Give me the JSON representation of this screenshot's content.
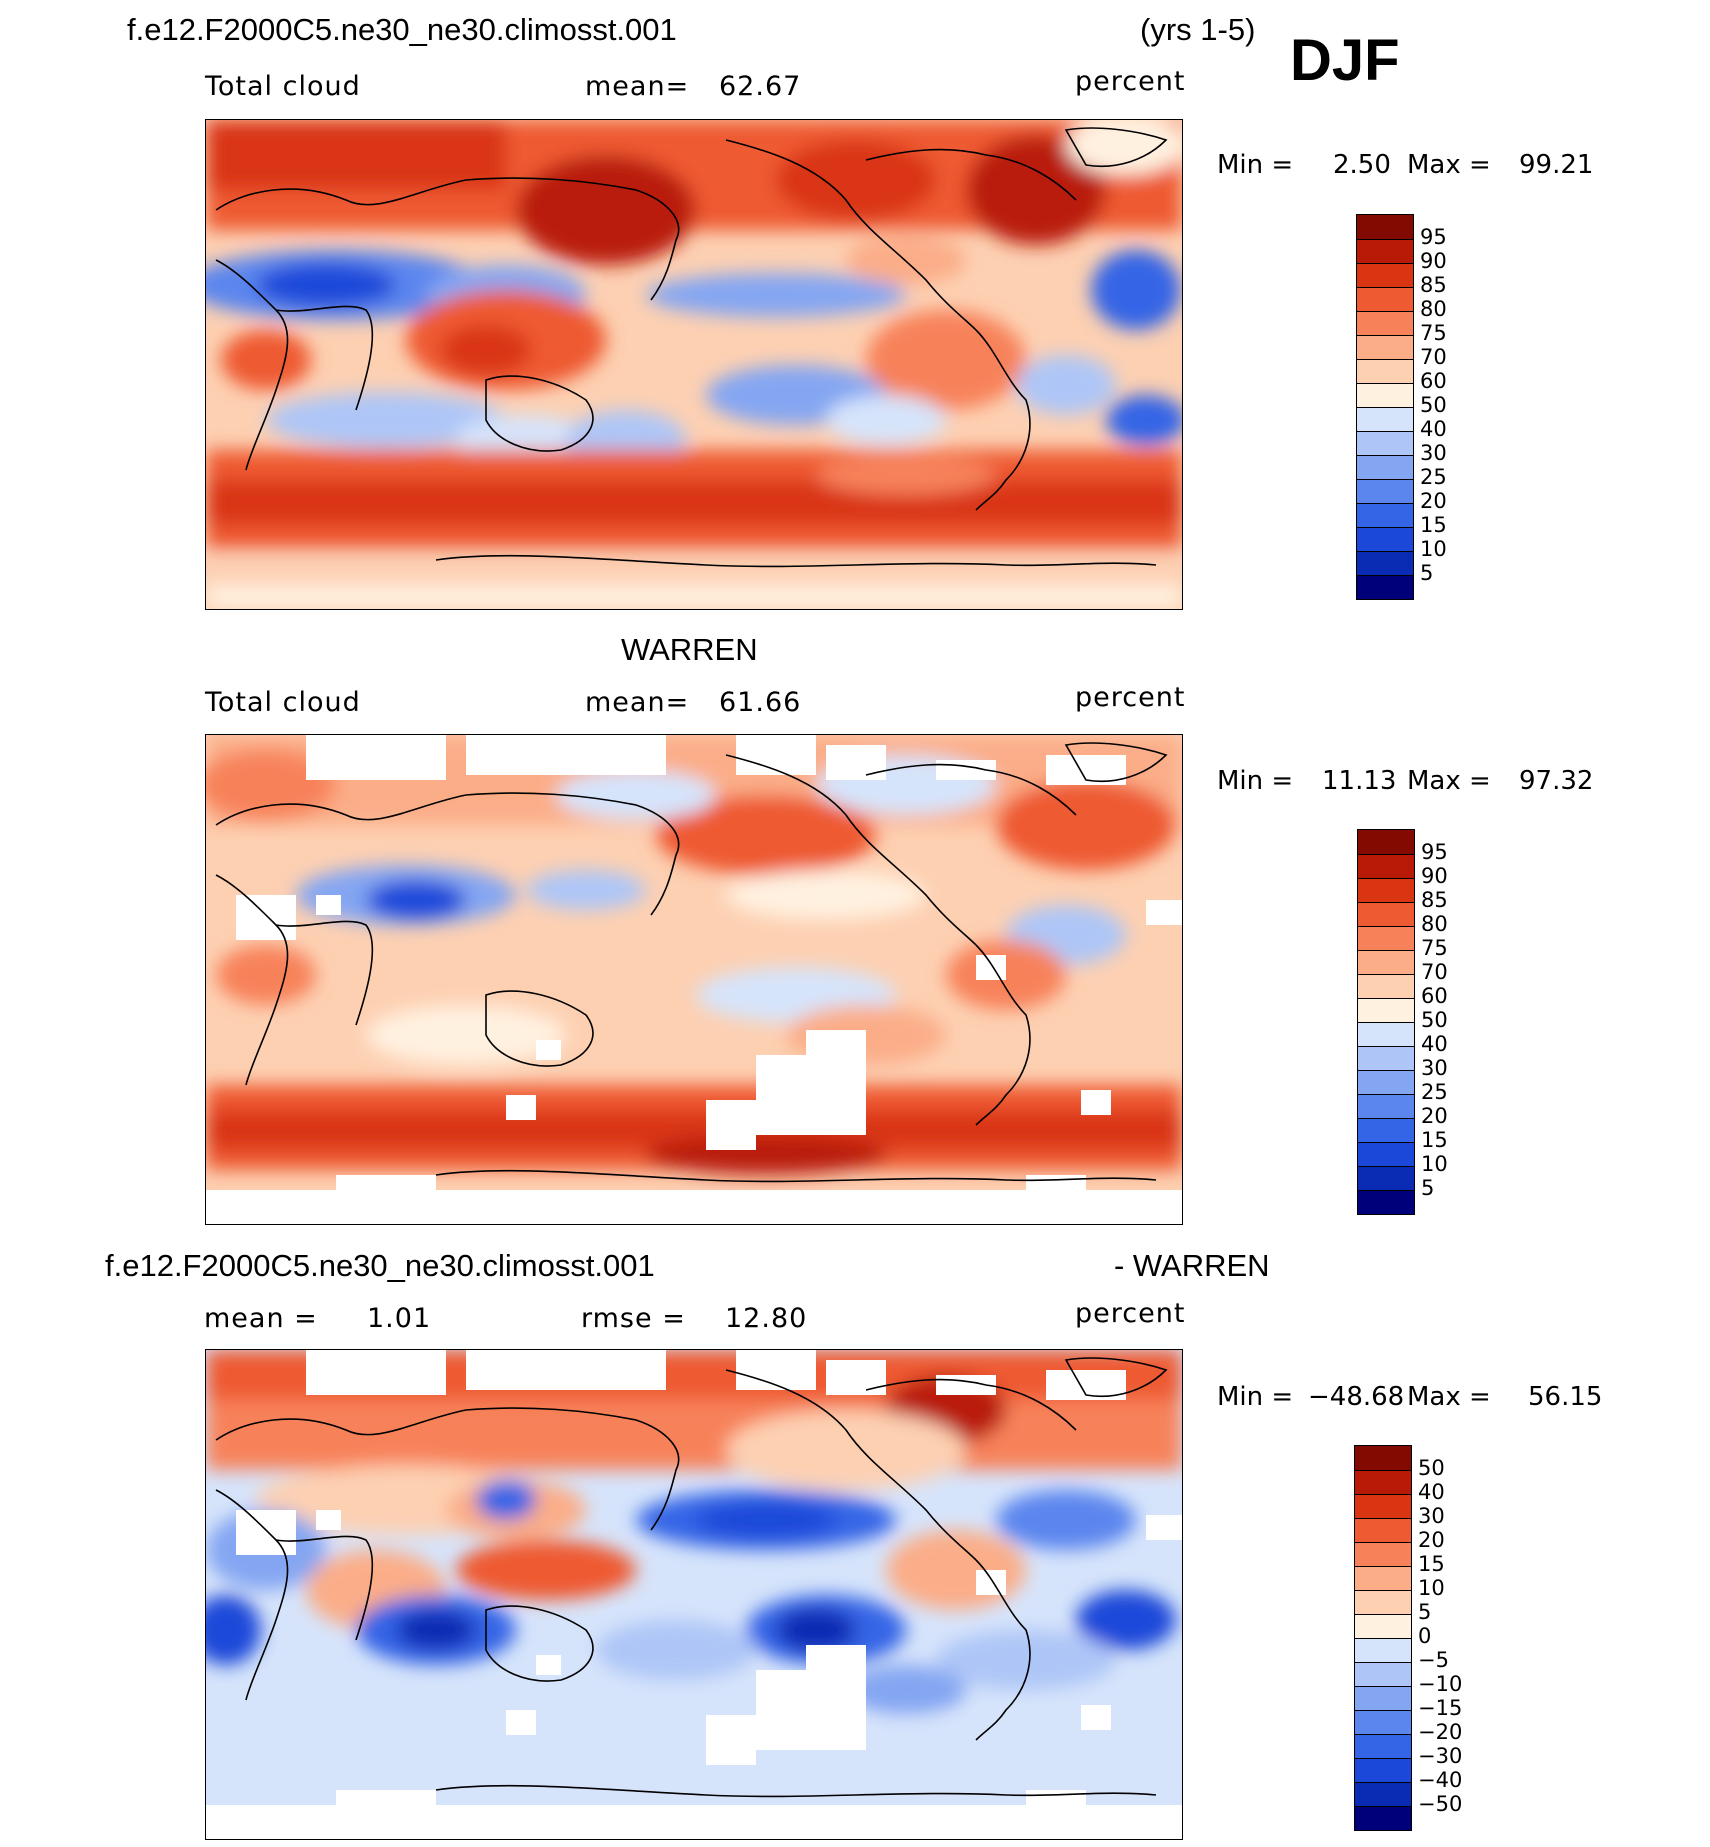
{
  "figure": {
    "case_name": "f.e12.F2000C5.ne30_ne30.climosst.001",
    "years": "(yrs 1-5)",
    "season": "DJF",
    "panel2_title": "WARREN",
    "panel3_case": "f.e12.F2000C5.ne30_ne30.climosst.001",
    "panel3_suffix": "- WARREN"
  },
  "colors": {
    "abs_palette": [
      "#00007a",
      "#0a2bb3",
      "#1c48d9",
      "#3465e6",
      "#5b86ee",
      "#84a6f2",
      "#aec6f7",
      "#d6e4fb",
      "#fff1e0",
      "#fdd0b2",
      "#fbad88",
      "#f7825a",
      "#ee5a32",
      "#d93512",
      "#b91a08",
      "#830a00"
    ],
    "diff_palette": [
      "#00007a",
      "#0a2bb3",
      "#1c48d9",
      "#3465e6",
      "#5b86ee",
      "#84a6f2",
      "#aec6f7",
      "#d6e4fb",
      "#fff1e0",
      "#fdd0b2",
      "#fbad88",
      "#f7825a",
      "#ee5a32",
      "#d93512",
      "#b91a08",
      "#830a00"
    ]
  },
  "panels": [
    {
      "variable": "Total cloud",
      "mean_label": "mean=",
      "mean_value": "62.67",
      "units": "percent",
      "min_label": "Min =",
      "min_value": "2.50",
      "max_label": "Max =",
      "max_value": "99.21",
      "colorbar_labels": [
        "95",
        "90",
        "85",
        "80",
        "75",
        "70",
        "60",
        "50",
        "40",
        "30",
        "25",
        "20",
        "15",
        "10",
        "5"
      ]
    },
    {
      "variable": "Total cloud",
      "mean_label": "mean=",
      "mean_value": "61.66",
      "units": "percent",
      "min_label": "Min =",
      "min_value": "11.13",
      "max_label": "Max =",
      "max_value": "97.32",
      "colorbar_labels": [
        "95",
        "90",
        "85",
        "80",
        "75",
        "70",
        "60",
        "50",
        "40",
        "30",
        "25",
        "20",
        "15",
        "10",
        "5"
      ]
    },
    {
      "mean_label": "mean =",
      "mean_value": "1.01",
      "rmse_label": "rmse =",
      "rmse_value": "12.80",
      "units": "percent",
      "min_label": "Min =",
      "min_value": "−48.68",
      "max_label": "Max =",
      "max_value": "56.15",
      "colorbar_labels": [
        "50",
        "40",
        "30",
        "20",
        "15",
        "10",
        "5",
        "0",
        "−5",
        "−10",
        "−15",
        "−20",
        "−30",
        "−40",
        "−50"
      ]
    }
  ],
  "chart_data": [
    {
      "type": "heatmap",
      "title": "f.e12.F2000C5.ne30_ne30.climosst.001 (yrs 1-5) DJF",
      "subtitle": "Total cloud",
      "units": "percent",
      "mean": 62.67,
      "min": 2.5,
      "max": 99.21,
      "contour_levels": [
        5,
        10,
        15,
        20,
        25,
        30,
        40,
        50,
        60,
        70,
        75,
        80,
        85,
        90,
        95
      ],
      "x": "longitude",
      "y": "latitude",
      "xlim": [
        0,
        360
      ],
      "ylim": [
        -90,
        90
      ],
      "legend": "right"
    },
    {
      "type": "heatmap",
      "title": "WARREN",
      "subtitle": "Total cloud",
      "units": "percent",
      "mean": 61.66,
      "min": 11.13,
      "max": 97.32,
      "contour_levels": [
        5,
        10,
        15,
        20,
        25,
        30,
        40,
        50,
        60,
        70,
        75,
        80,
        85,
        90,
        95
      ],
      "x": "longitude",
      "y": "latitude",
      "xlim": [
        0,
        360
      ],
      "ylim": [
        -90,
        90
      ],
      "legend": "right"
    },
    {
      "type": "heatmap",
      "title": "f.e12.F2000C5.ne30_ne30.climosst.001 - WARREN",
      "units": "percent",
      "mean": 1.01,
      "rmse": 12.8,
      "min": -48.68,
      "max": 56.15,
      "contour_levels": [
        -50,
        -40,
        -30,
        -20,
        -15,
        -10,
        -5,
        0,
        5,
        10,
        15,
        20,
        30,
        40,
        50
      ],
      "x": "longitude",
      "y": "latitude",
      "xlim": [
        0,
        360
      ],
      "ylim": [
        -90,
        90
      ],
      "legend": "right"
    }
  ]
}
